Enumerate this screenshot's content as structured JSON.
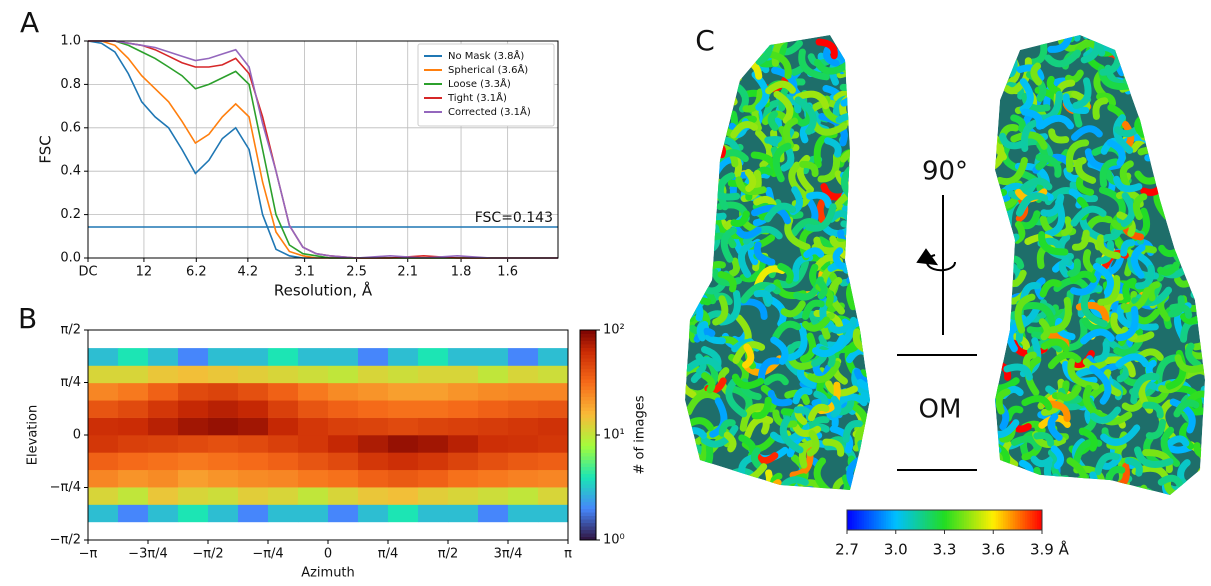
{
  "chart_data": [
    {
      "type": "line",
      "panel_label": "A",
      "xlabel": "Resolution, Å",
      "ylabel": "FSC",
      "x": [
        0,
        0.02,
        0.04,
        0.06,
        0.08,
        0.1,
        0.12,
        0.14,
        0.16,
        0.18,
        0.2,
        0.22,
        0.24,
        0.26,
        0.28,
        0.3,
        0.32,
        0.34,
        0.36,
        0.4,
        0.45,
        0.5,
        0.55,
        0.6,
        0.65,
        0.7
      ],
      "series": [
        {
          "name": "No Mask (3.8Å)",
          "color": "#1f77b4",
          "values": [
            1,
            0.99,
            0.95,
            0.85,
            0.72,
            0.65,
            0.6,
            0.5,
            0.39,
            0.45,
            0.55,
            0.6,
            0.5,
            0.2,
            0.04,
            0.01,
            0,
            0,
            0,
            0,
            0,
            0,
            0,
            0,
            0,
            0
          ]
        },
        {
          "name": "Spherical (3.6Å)",
          "color": "#ff7f0e",
          "values": [
            1,
            1,
            0.98,
            0.92,
            0.84,
            0.78,
            0.72,
            0.63,
            0.53,
            0.57,
            0.65,
            0.71,
            0.65,
            0.35,
            0.12,
            0.03,
            0.01,
            0,
            0,
            0,
            0,
            0,
            0,
            0,
            0,
            0
          ]
        },
        {
          "name": "Loose (3.3Å)",
          "color": "#2ca02c",
          "values": [
            1,
            1,
            1,
            0.98,
            0.95,
            0.92,
            0.88,
            0.84,
            0.78,
            0.8,
            0.83,
            0.86,
            0.8,
            0.5,
            0.2,
            0.06,
            0.02,
            0.01,
            0,
            0,
            0,
            0,
            0,
            0,
            0,
            0
          ]
        },
        {
          "name": "Tight (3.1Å)",
          "color": "#d62728",
          "values": [
            1,
            1,
            1,
            0.99,
            0.98,
            0.96,
            0.93,
            0.9,
            0.88,
            0.88,
            0.89,
            0.92,
            0.85,
            0.65,
            0.4,
            0.15,
            0.05,
            0.02,
            0.01,
            0,
            0,
            0.01,
            0,
            0,
            0,
            0
          ]
        },
        {
          "name": "Corrected (3.1Å)",
          "color": "#9467bd",
          "values": [
            1,
            1,
            1,
            0.99,
            0.98,
            0.97,
            0.95,
            0.93,
            0.91,
            0.92,
            0.94,
            0.96,
            0.88,
            0.62,
            0.4,
            0.15,
            0.05,
            0.02,
            0.01,
            0,
            0.01,
            0,
            0.01,
            0,
            0,
            0
          ]
        }
      ],
      "reference_line": {
        "value": 0.143,
        "label": "FSC=0.143",
        "color": "#1f77b4"
      },
      "xlim": [
        0,
        0.7
      ],
      "xticks": [
        {
          "value": 0,
          "label": "DC"
        },
        {
          "value": 0.0833,
          "label": "12"
        },
        {
          "value": 0.1613,
          "label": "6.2"
        },
        {
          "value": 0.2381,
          "label": "4.2"
        },
        {
          "value": 0.3226,
          "label": "3.1"
        },
        {
          "value": 0.4,
          "label": "2.5"
        },
        {
          "value": 0.4762,
          "label": "2.1"
        },
        {
          "value": 0.5556,
          "label": "1.8"
        },
        {
          "value": 0.625,
          "label": "1.6"
        }
      ],
      "ylim": [
        0,
        1
      ],
      "yticks": [
        {
          "value": 0,
          "label": "0.0"
        },
        {
          "value": 0.2,
          "label": "0.2"
        },
        {
          "value": 0.4,
          "label": "0.4"
        },
        {
          "value": 0.6,
          "label": "0.6"
        },
        {
          "value": 0.8,
          "label": "0.8"
        },
        {
          "value": 1,
          "label": "1.0"
        }
      ],
      "grid": true,
      "legend": "upper right"
    },
    {
      "type": "hexbin",
      "panel_label": "B",
      "xlabel": "Azimuth",
      "ylabel": "Elevation",
      "colorbar_label": "# of images",
      "colormap": "turbo",
      "log_color": true,
      "x_bins": [
        -3.1416,
        -2.7489,
        -2.3562,
        -1.9635,
        -1.5708,
        -1.1781,
        -0.7854,
        -0.3927,
        0,
        0.3927,
        0.7854,
        1.1781,
        1.5708,
        1.9635,
        2.3562,
        2.7489,
        3.1416
      ],
      "y_bins": [
        -1.3,
        -1.04,
        -0.78,
        -0.52,
        -0.26,
        0,
        0.26,
        0.52,
        0.78,
        1.04,
        1.3
      ],
      "counts": [
        [
          3,
          2,
          3,
          4,
          3,
          2,
          3,
          3,
          2,
          3,
          4,
          3,
          3,
          2,
          3,
          3
        ],
        [
          12,
          10,
          14,
          12,
          11,
          13,
          12,
          10,
          12,
          14,
          15,
          13,
          12,
          11,
          10,
          12
        ],
        [
          25,
          22,
          24,
          20,
          22,
          24,
          25,
          28,
          30,
          35,
          38,
          35,
          30,
          28,
          26,
          25
        ],
        [
          35,
          32,
          30,
          28,
          30,
          32,
          35,
          40,
          45,
          55,
          60,
          55,
          48,
          42,
          38,
          36
        ],
        [
          55,
          50,
          48,
          45,
          42,
          45,
          50,
          55,
          65,
          75,
          85,
          80,
          70,
          60,
          58,
          55
        ],
        [
          60,
          62,
          70,
          80,
          85,
          80,
          65,
          55,
          50,
          48,
          45,
          48,
          50,
          52,
          55,
          58
        ],
        [
          40,
          45,
          55,
          65,
          70,
          65,
          50,
          40,
          35,
          32,
          30,
          30,
          32,
          35,
          38,
          40
        ],
        [
          25,
          28,
          35,
          45,
          48,
          42,
          35,
          28,
          24,
          22,
          20,
          20,
          22,
          24,
          25,
          25
        ],
        [
          12,
          12,
          14,
          15,
          14,
          13,
          12,
          11,
          10,
          12,
          11,
          12,
          12,
          10,
          12,
          11
        ],
        [
          3,
          4,
          3,
          2,
          3,
          3,
          4,
          3,
          3,
          2,
          3,
          4,
          3,
          3,
          2,
          3
        ]
      ],
      "xlim": [
        -3.1416,
        3.1416
      ],
      "xticks": [
        {
          "value": -3.1416,
          "label": "−π"
        },
        {
          "value": -2.3562,
          "label": "−3π/4"
        },
        {
          "value": -1.5708,
          "label": "−π/2"
        },
        {
          "value": -0.7854,
          "label": "−π/4"
        },
        0,
        {
          "value": 0.7854,
          "label": "π/4"
        },
        {
          "value": 1.5708,
          "label": "π/2"
        },
        {
          "value": 2.3562,
          "label": "3π/4"
        },
        {
          "value": 3.1416,
          "label": "π"
        }
      ],
      "ylim": [
        -1.5708,
        1.5708
      ],
      "yticks": [
        {
          "value": -1.5708,
          "label": "−π/2"
        },
        {
          "value": -0.7854,
          "label": "−π/4"
        },
        0,
        {
          "value": 0.7854,
          "label": "π/4"
        },
        {
          "value": 1.5708,
          "label": "π/2"
        }
      ],
      "clim": [
        1,
        100
      ],
      "cticks": [
        {
          "value": 1,
          "label": "10⁰"
        },
        {
          "value": 10,
          "label": "10¹"
        },
        {
          "value": 100,
          "label": "10²"
        }
      ]
    }
  ],
  "panel_c": {
    "panel_label": "C",
    "rotation_label": "90°",
    "membrane_label": "OM",
    "colormap": "jet",
    "colorbar": {
      "clim": [
        2.7,
        3.9
      ],
      "ticks": [
        {
          "value": 2.7,
          "label": "2.7"
        },
        {
          "value": 3,
          "label": "3.0"
        },
        {
          "value": 3.3,
          "label": "3.3"
        },
        {
          "value": 3.6,
          "label": "3.6"
        },
        {
          "value": 3.9,
          "label": "3.9 Å"
        }
      ]
    }
  }
}
